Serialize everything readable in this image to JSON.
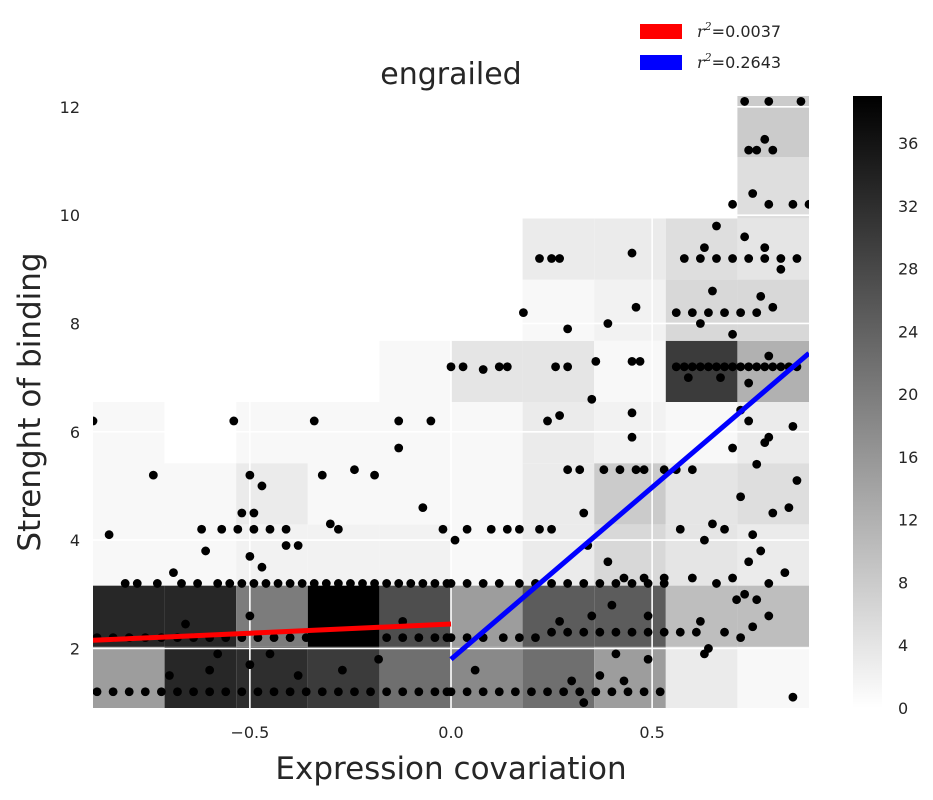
{
  "chart_data": {
    "type": "heatmap",
    "title": "engrailed",
    "xlabel": "Expression covariation",
    "ylabel": "Strenght of binding",
    "xlim": [
      -0.89,
      0.89
    ],
    "ylim": [
      0.9,
      12.2
    ],
    "xticks": [
      -0.5,
      0.0,
      0.5
    ],
    "xtick_labels": [
      "−0.5",
      "0.0",
      "0.5"
    ],
    "yticks": [
      2,
      4,
      6,
      8,
      10,
      12
    ],
    "ytick_labels": [
      "2",
      "4",
      "6",
      "8",
      "10",
      "12"
    ],
    "grid": true,
    "legend_position": "top-right",
    "colorbar": {
      "min": 0,
      "max": 39,
      "ticks": [
        0,
        4,
        8,
        12,
        16,
        20,
        24,
        28,
        32,
        36
      ],
      "tick_labels": [
        "0",
        "4",
        "8",
        "12",
        "16",
        "20",
        "24",
        "28",
        "32",
        "36"
      ]
    },
    "histogram": {
      "x_edges": [
        -0.89,
        -0.712,
        -0.534,
        -0.356,
        -0.178,
        0.0,
        0.178,
        0.356,
        0.534,
        0.712,
        0.89
      ],
      "y_edges": [
        0.9,
        2.03,
        3.16,
        4.29,
        5.42,
        6.55,
        7.68,
        8.81,
        9.94,
        11.07,
        12.2
      ],
      "counts": [
        [
          15,
          33,
          32,
          30,
          22,
          18,
          22,
          15,
          3,
          1
        ],
        [
          33,
          33,
          20,
          39,
          27,
          15,
          25,
          25,
          10,
          10
        ],
        [
          1,
          1,
          2,
          2,
          2,
          1,
          3,
          6,
          4,
          3
        ],
        [
          1,
          1,
          3,
          1,
          1,
          1,
          3,
          8,
          4,
          5
        ],
        [
          1,
          0,
          1,
          1,
          1,
          1,
          3,
          2,
          1,
          3
        ],
        [
          0,
          0,
          0,
          0,
          1,
          4,
          4,
          1,
          30,
          12
        ],
        [
          0,
          0,
          0,
          0,
          0,
          0,
          1,
          2,
          6,
          6
        ],
        [
          0,
          0,
          0,
          0,
          0,
          0,
          3,
          3,
          5,
          4
        ],
        [
          0,
          0,
          0,
          0,
          0,
          0,
          0,
          0,
          0,
          5
        ],
        [
          0,
          0,
          0,
          0,
          0,
          0,
          0,
          0,
          0,
          8
        ]
      ]
    },
    "scatter": [
      [
        -0.89,
        6.2
      ],
      [
        -0.85,
        4.1
      ],
      [
        -0.81,
        3.2
      ],
      [
        -0.78,
        3.2
      ],
      [
        -0.74,
        5.2
      ],
      [
        -0.73,
        3.2
      ],
      [
        -0.69,
        3.4
      ],
      [
        -0.67,
        3.2
      ],
      [
        -0.63,
        3.2
      ],
      [
        -0.61,
        3.8
      ],
      [
        -0.58,
        3.2
      ],
      [
        -0.55,
        3.2
      ],
      [
        -0.52,
        3.2
      ],
      [
        -0.49,
        3.2
      ],
      [
        -0.46,
        3.2
      ],
      [
        -0.43,
        3.2
      ],
      [
        -0.4,
        3.2
      ],
      [
        -0.37,
        3.2
      ],
      [
        -0.34,
        3.2
      ],
      [
        -0.31,
        3.2
      ],
      [
        -0.28,
        3.2
      ],
      [
        -0.25,
        3.2
      ],
      [
        -0.22,
        3.2
      ],
      [
        -0.19,
        3.2
      ],
      [
        -0.16,
        3.2
      ],
      [
        -0.13,
        3.2
      ],
      [
        -0.1,
        3.2
      ],
      [
        -0.07,
        3.2
      ],
      [
        -0.04,
        3.2
      ],
      [
        -0.01,
        3.2
      ],
      [
        -0.88,
        2.2
      ],
      [
        -0.84,
        2.2
      ],
      [
        -0.8,
        2.2
      ],
      [
        -0.76,
        2.2
      ],
      [
        -0.72,
        2.2
      ],
      [
        -0.68,
        2.2
      ],
      [
        -0.64,
        2.2
      ],
      [
        -0.6,
        2.2
      ],
      [
        -0.56,
        2.2
      ],
      [
        -0.52,
        2.2
      ],
      [
        -0.48,
        2.2
      ],
      [
        -0.44,
        2.2
      ],
      [
        -0.4,
        2.2
      ],
      [
        -0.36,
        2.2
      ],
      [
        -0.32,
        2.2
      ],
      [
        -0.28,
        2.2
      ],
      [
        -0.24,
        2.2
      ],
      [
        -0.2,
        2.2
      ],
      [
        -0.16,
        2.2
      ],
      [
        -0.12,
        2.2
      ],
      [
        -0.08,
        2.2
      ],
      [
        -0.04,
        2.2
      ],
      [
        -0.01,
        2.2
      ],
      [
        -0.66,
        2.45
      ],
      [
        -0.5,
        2.6
      ],
      [
        -0.26,
        2.4
      ],
      [
        -0.12,
        2.5
      ],
      [
        -0.88,
        1.2
      ],
      [
        -0.84,
        1.2
      ],
      [
        -0.8,
        1.2
      ],
      [
        -0.76,
        1.2
      ],
      [
        -0.72,
        1.2
      ],
      [
        -0.68,
        1.2
      ],
      [
        -0.64,
        1.2
      ],
      [
        -0.6,
        1.2
      ],
      [
        -0.56,
        1.2
      ],
      [
        -0.52,
        1.2
      ],
      [
        -0.48,
        1.2
      ],
      [
        -0.44,
        1.2
      ],
      [
        -0.4,
        1.2
      ],
      [
        -0.36,
        1.2
      ],
      [
        -0.32,
        1.2
      ],
      [
        -0.28,
        1.2
      ],
      [
        -0.24,
        1.2
      ],
      [
        -0.2,
        1.2
      ],
      [
        -0.16,
        1.2
      ],
      [
        -0.12,
        1.2
      ],
      [
        -0.08,
        1.2
      ],
      [
        -0.04,
        1.2
      ],
      [
        -0.01,
        1.2
      ],
      [
        -0.7,
        1.5
      ],
      [
        -0.6,
        1.6
      ],
      [
        -0.5,
        1.7
      ],
      [
        -0.38,
        1.5
      ],
      [
        -0.27,
        1.6
      ],
      [
        -0.18,
        1.8
      ],
      [
        -0.58,
        1.9
      ],
      [
        -0.45,
        1.9
      ],
      [
        -0.62,
        4.2
      ],
      [
        -0.57,
        4.2
      ],
      [
        -0.53,
        4.2
      ],
      [
        -0.49,
        4.2
      ],
      [
        -0.45,
        4.2
      ],
      [
        -0.41,
        4.2
      ],
      [
        -0.3,
        4.3
      ],
      [
        -0.28,
        4.2
      ],
      [
        -0.38,
        3.9
      ],
      [
        -0.52,
        4.5
      ],
      [
        -0.49,
        4.5
      ],
      [
        -0.5,
        3.7
      ],
      [
        -0.47,
        3.5
      ],
      [
        -0.41,
        3.9
      ],
      [
        -0.5,
        5.2
      ],
      [
        -0.47,
        5.0
      ],
      [
        -0.32,
        5.2
      ],
      [
        -0.24,
        5.3
      ],
      [
        -0.19,
        5.2
      ],
      [
        -0.54,
        6.2
      ],
      [
        -0.34,
        6.2
      ],
      [
        -0.13,
        6.2
      ],
      [
        -0.05,
        6.2
      ],
      [
        -0.13,
        5.7
      ],
      [
        -0.07,
        4.6
      ],
      [
        -0.02,
        4.2
      ],
      [
        0.0,
        7.2
      ],
      [
        0.03,
        7.2
      ],
      [
        0.08,
        7.15
      ],
      [
        0.12,
        7.2
      ],
      [
        0.14,
        7.2
      ],
      [
        0.26,
        7.2
      ],
      [
        0.29,
        7.2
      ],
      [
        0.36,
        7.3
      ],
      [
        0.45,
        7.3
      ],
      [
        0.47,
        7.3
      ],
      [
        0.18,
        8.2
      ],
      [
        0.22,
        9.2
      ],
      [
        0.25,
        9.2
      ],
      [
        0.27,
        9.2
      ],
      [
        0.29,
        7.9
      ],
      [
        0.39,
        8.0
      ],
      [
        0.45,
        9.3
      ],
      [
        0.46,
        8.3
      ],
      [
        0.01,
        4.0
      ],
      [
        0.04,
        4.2
      ],
      [
        0.1,
        4.2
      ],
      [
        0.14,
        4.2
      ],
      [
        0.17,
        4.2
      ],
      [
        0.22,
        4.2
      ],
      [
        0.25,
        4.2
      ],
      [
        0.29,
        5.3
      ],
      [
        0.32,
        5.3
      ],
      [
        0.38,
        5.3
      ],
      [
        0.42,
        5.3
      ],
      [
        0.46,
        5.3
      ],
      [
        0.48,
        5.3
      ],
      [
        0.53,
        5.3
      ],
      [
        0.56,
        5.3
      ],
      [
        0.6,
        5.3
      ],
      [
        0.24,
        6.2
      ],
      [
        0.27,
        6.3
      ],
      [
        0.35,
        6.6
      ],
      [
        0.45,
        6.35
      ],
      [
        0.45,
        5.9
      ],
      [
        0.33,
        4.5
      ],
      [
        0.34,
        3.9
      ],
      [
        0.39,
        3.6
      ],
      [
        0.43,
        3.3
      ],
      [
        0.48,
        3.3
      ],
      [
        0.53,
        3.3
      ],
      [
        0.0,
        3.2
      ],
      [
        0.04,
        3.2
      ],
      [
        0.08,
        3.2
      ],
      [
        0.12,
        3.2
      ],
      [
        0.17,
        3.2
      ],
      [
        0.21,
        3.2
      ],
      [
        0.25,
        3.2
      ],
      [
        0.29,
        3.2
      ],
      [
        0.33,
        3.2
      ],
      [
        0.37,
        3.2
      ],
      [
        0.41,
        3.2
      ],
      [
        0.45,
        3.2
      ],
      [
        0.49,
        3.2
      ],
      [
        0.53,
        3.2
      ],
      [
        0.0,
        2.2
      ],
      [
        0.04,
        2.2
      ],
      [
        0.08,
        2.2
      ],
      [
        0.13,
        2.2
      ],
      [
        0.17,
        2.2
      ],
      [
        0.21,
        2.2
      ],
      [
        0.25,
        2.3
      ],
      [
        0.29,
        2.3
      ],
      [
        0.33,
        2.3
      ],
      [
        0.37,
        2.3
      ],
      [
        0.41,
        2.3
      ],
      [
        0.45,
        2.3
      ],
      [
        0.49,
        2.3
      ],
      [
        0.53,
        2.3
      ],
      [
        0.57,
        2.3
      ],
      [
        0.61,
        2.3
      ],
      [
        0.27,
        2.5
      ],
      [
        0.35,
        2.6
      ],
      [
        0.4,
        2.8
      ],
      [
        0.49,
        2.6
      ],
      [
        0.0,
        1.2
      ],
      [
        0.04,
        1.2
      ],
      [
        0.08,
        1.2
      ],
      [
        0.12,
        1.2
      ],
      [
        0.16,
        1.2
      ],
      [
        0.2,
        1.2
      ],
      [
        0.24,
        1.2
      ],
      [
        0.28,
        1.2
      ],
      [
        0.32,
        1.2
      ],
      [
        0.36,
        1.2
      ],
      [
        0.4,
        1.2
      ],
      [
        0.44,
        1.2
      ],
      [
        0.48,
        1.2
      ],
      [
        0.52,
        1.2
      ],
      [
        0.06,
        1.6
      ],
      [
        0.3,
        1.4
      ],
      [
        0.33,
        1.0
      ],
      [
        0.37,
        1.5
      ],
      [
        0.43,
        1.4
      ],
      [
        0.49,
        1.8
      ],
      [
        0.41,
        1.9
      ],
      [
        0.56,
        7.2
      ],
      [
        0.58,
        7.2
      ],
      [
        0.6,
        7.2
      ],
      [
        0.62,
        7.2
      ],
      [
        0.64,
        7.2
      ],
      [
        0.66,
        7.2
      ],
      [
        0.68,
        7.2
      ],
      [
        0.7,
        7.2
      ],
      [
        0.72,
        7.2
      ],
      [
        0.74,
        7.2
      ],
      [
        0.76,
        7.2
      ],
      [
        0.78,
        7.2
      ],
      [
        0.8,
        7.2
      ],
      [
        0.82,
        7.2
      ],
      [
        0.84,
        7.2
      ],
      [
        0.86,
        7.2
      ],
      [
        0.59,
        7.0
      ],
      [
        0.67,
        7.0
      ],
      [
        0.74,
        6.9
      ],
      [
        0.79,
        7.4
      ],
      [
        0.56,
        8.2
      ],
      [
        0.6,
        8.2
      ],
      [
        0.64,
        8.2
      ],
      [
        0.68,
        8.2
      ],
      [
        0.72,
        8.2
      ],
      [
        0.76,
        8.2
      ],
      [
        0.8,
        8.3
      ],
      [
        0.62,
        8.0
      ],
      [
        0.7,
        7.8
      ],
      [
        0.77,
        8.5
      ],
      [
        0.65,
        8.6
      ],
      [
        0.58,
        9.2
      ],
      [
        0.62,
        9.2
      ],
      [
        0.66,
        9.2
      ],
      [
        0.7,
        9.2
      ],
      [
        0.74,
        9.2
      ],
      [
        0.78,
        9.2
      ],
      [
        0.82,
        9.2
      ],
      [
        0.86,
        9.2
      ],
      [
        0.63,
        9.4
      ],
      [
        0.73,
        9.6
      ],
      [
        0.78,
        9.4
      ],
      [
        0.82,
        9.0
      ],
      [
        0.66,
        9.8
      ],
      [
        0.7,
        10.2
      ],
      [
        0.75,
        10.4
      ],
      [
        0.79,
        10.2
      ],
      [
        0.85,
        10.2
      ],
      [
        0.89,
        10.2
      ],
      [
        0.74,
        11.2
      ],
      [
        0.76,
        11.2
      ],
      [
        0.8,
        11.2
      ],
      [
        0.78,
        11.4
      ],
      [
        0.73,
        12.1
      ],
      [
        0.79,
        12.1
      ],
      [
        0.87,
        12.1
      ],
      [
        0.57,
        4.2
      ],
      [
        0.63,
        4.0
      ],
      [
        0.65,
        4.3
      ],
      [
        0.68,
        4.2
      ],
      [
        0.72,
        4.8
      ],
      [
        0.75,
        4.1
      ],
      [
        0.77,
        3.8
      ],
      [
        0.8,
        4.5
      ],
      [
        0.84,
        4.6
      ],
      [
        0.86,
        5.1
      ],
      [
        0.7,
        5.7
      ],
      [
        0.76,
        5.4
      ],
      [
        0.78,
        5.8
      ],
      [
        0.72,
        6.4
      ],
      [
        0.74,
        6.2
      ],
      [
        0.79,
        5.9
      ],
      [
        0.85,
        6.1
      ],
      [
        0.6,
        3.3
      ],
      [
        0.66,
        3.2
      ],
      [
        0.7,
        3.3
      ],
      [
        0.73,
        3.0
      ],
      [
        0.76,
        2.9
      ],
      [
        0.79,
        3.2
      ],
      [
        0.83,
        3.4
      ],
      [
        0.62,
        2.5
      ],
      [
        0.68,
        2.3
      ],
      [
        0.72,
        2.2
      ],
      [
        0.75,
        2.4
      ],
      [
        0.79,
        2.6
      ],
      [
        0.63,
        1.9
      ],
      [
        0.64,
        2.0
      ],
      [
        0.85,
        1.1
      ],
      [
        0.71,
        2.9
      ],
      [
        0.74,
        3.6
      ]
    ],
    "series": [
      {
        "name": "$r^2$=0.0037",
        "color": "#ff0000",
        "x": [
          -0.89,
          0.0
        ],
        "y": [
          2.15,
          2.45
        ]
      },
      {
        "name": "$r^2$=0.2643",
        "color": "#0000ff",
        "x": [
          0.0,
          0.89
        ],
        "y": [
          1.8,
          7.45
        ]
      }
    ]
  }
}
